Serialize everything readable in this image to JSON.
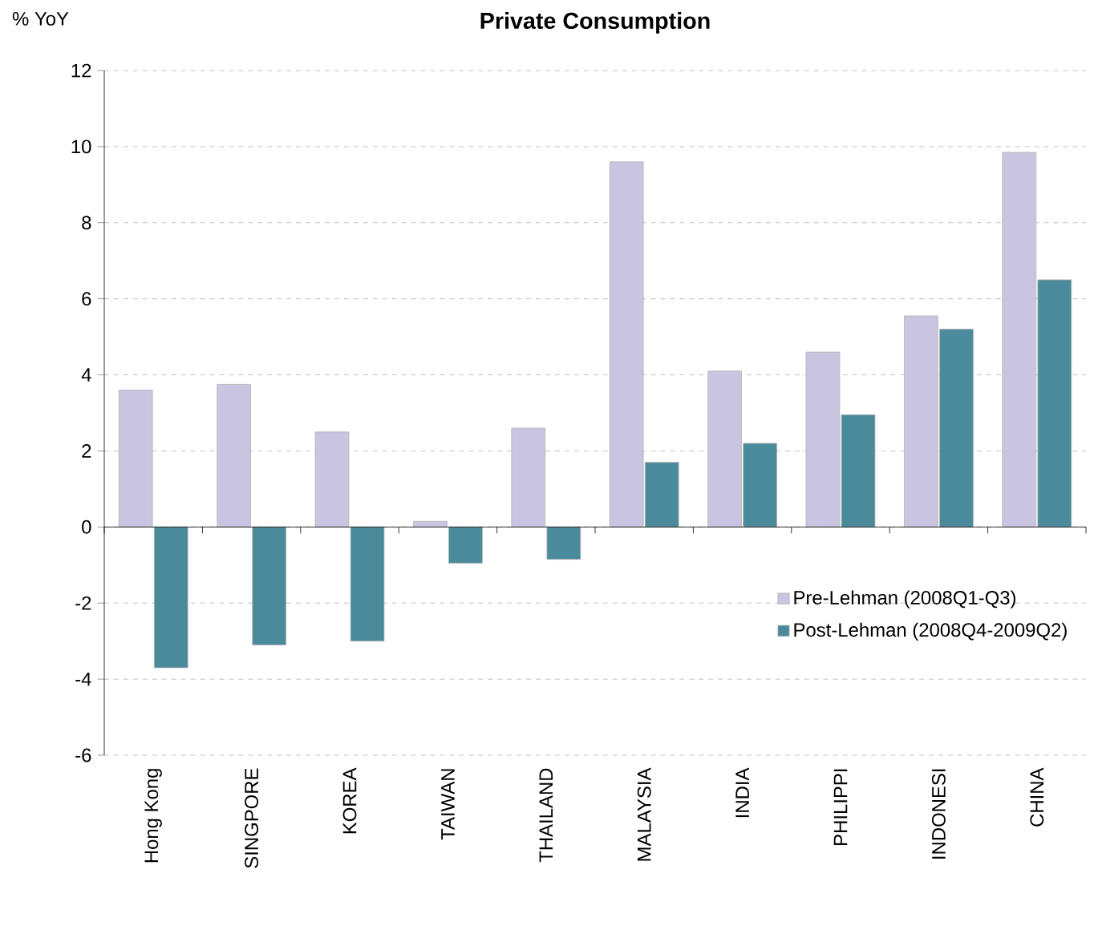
{
  "chart_data": {
    "type": "bar",
    "title": "Private Consumption",
    "ylabel": "% YoY",
    "categories": [
      "Hong Kong",
      "SINGPORE",
      "KOREA",
      "TAIWAN",
      "THAILAND",
      "MALAYSIA",
      "INDIA",
      "PHILIPPI",
      "INDONESI",
      "CHINA"
    ],
    "series": [
      {
        "name": "Pre-Lehman (2008Q1-Q3)",
        "color": "#c9c5e0",
        "values": [
          3.6,
          3.75,
          2.5,
          0.15,
          2.6,
          9.6,
          4.1,
          4.6,
          5.55,
          9.85
        ]
      },
      {
        "name": "Post-Lehman (2008Q4-2009Q2)",
        "color": "#4a8a9a",
        "values": [
          -3.7,
          -3.1,
          -3.0,
          -0.95,
          -0.85,
          1.7,
          2.2,
          2.95,
          5.2,
          6.5
        ]
      }
    ],
    "ylim": [
      -6,
      12
    ],
    "yticks": [
      -6,
      -4,
      -2,
      0,
      2,
      4,
      6,
      8,
      10,
      12
    ],
    "grid": "y",
    "legend": "bottom right"
  }
}
